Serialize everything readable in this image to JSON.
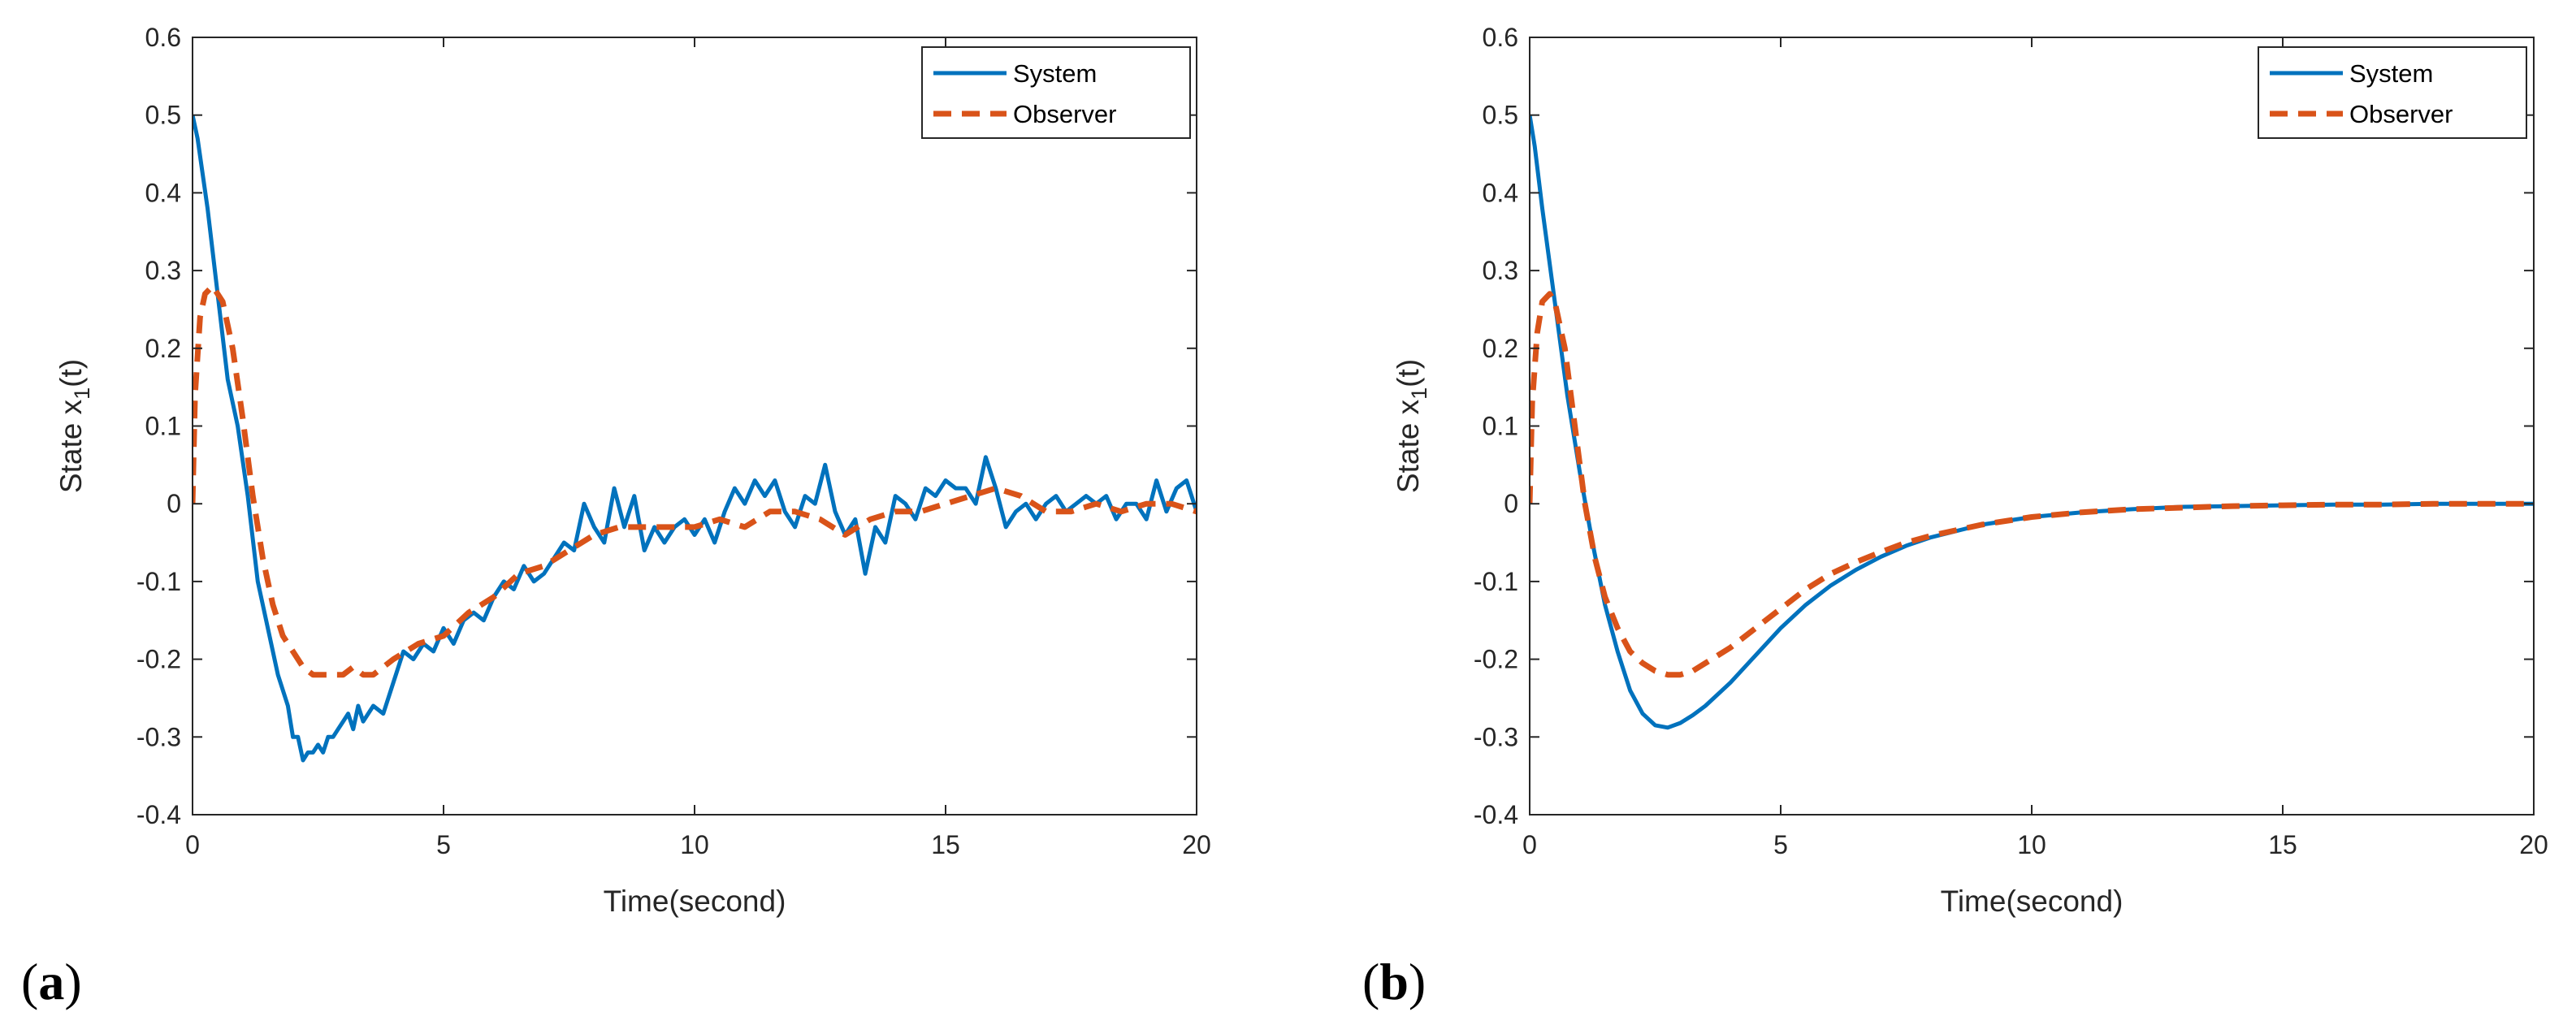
{
  "figure": {
    "panels": [
      {
        "label_open": "(",
        "label_letter": "a",
        "label_close": ")"
      },
      {
        "label_open": "(",
        "label_letter": "b",
        "label_close": ")"
      }
    ]
  },
  "colors": {
    "system": "#0072bd",
    "observer": "#d95319",
    "axis": "#262626"
  },
  "chart_data": [
    {
      "type": "line",
      "panel": "a",
      "xlabel": "Time(second)",
      "ylabel_prefix": "State x",
      "ylabel_sub": "1",
      "ylabel_suffix": "(t)",
      "xlim": [
        0,
        20
      ],
      "ylim": [
        -0.4,
        0.6
      ],
      "xticks": [
        0,
        5,
        10,
        15,
        20
      ],
      "yticks": [
        -0.4,
        -0.3,
        -0.2,
        -0.1,
        0,
        0.1,
        0.2,
        0.3,
        0.4,
        0.5,
        0.6
      ],
      "xtick_labels": [
        "0",
        "5",
        "10",
        "15",
        "20"
      ],
      "ytick_labels": [
        "-0.4",
        "-0.3",
        "-0.2",
        "-0.1",
        "0",
        "0.1",
        "0.2",
        "0.3",
        "0.4",
        "0.5",
        "0.6"
      ],
      "legend": {
        "position": "top-right",
        "entries": [
          "System",
          "Observer"
        ]
      },
      "grid": false,
      "series": [
        {
          "name": "System",
          "style": "solid",
          "x": [
            0,
            0.1,
            0.3,
            0.5,
            0.7,
            0.9,
            1.1,
            1.3,
            1.5,
            1.7,
            1.9,
            2.0,
            2.1,
            2.2,
            2.3,
            2.4,
            2.5,
            2.6,
            2.7,
            2.8,
            2.9,
            3.0,
            3.1,
            3.2,
            3.3,
            3.4,
            3.6,
            3.8,
            4.0,
            4.2,
            4.4,
            4.6,
            4.8,
            5.0,
            5.2,
            5.4,
            5.6,
            5.8,
            6.0,
            6.2,
            6.4,
            6.6,
            6.8,
            7.0,
            7.2,
            7.4,
            7.6,
            7.8,
            8.0,
            8.2,
            8.4,
            8.6,
            8.8,
            9.0,
            9.2,
            9.4,
            9.6,
            9.8,
            10.0,
            10.2,
            10.4,
            10.6,
            10.8,
            11.0,
            11.2,
            11.4,
            11.6,
            11.8,
            12.0,
            12.2,
            12.4,
            12.6,
            12.8,
            13.0,
            13.2,
            13.4,
            13.6,
            13.8,
            14.0,
            14.2,
            14.4,
            14.6,
            14.8,
            15.0,
            15.2,
            15.4,
            15.6,
            15.8,
            16.0,
            16.2,
            16.4,
            16.6,
            16.8,
            17.0,
            17.2,
            17.4,
            17.6,
            17.8,
            18.0,
            18.2,
            18.4,
            18.6,
            18.8,
            19.0,
            19.2,
            19.4,
            19.6,
            19.8,
            20.0
          ],
          "y": [
            0.5,
            0.47,
            0.38,
            0.27,
            0.16,
            0.1,
            0.01,
            -0.1,
            -0.16,
            -0.22,
            -0.26,
            -0.3,
            -0.3,
            -0.33,
            -0.32,
            -0.32,
            -0.31,
            -0.32,
            -0.3,
            -0.3,
            -0.29,
            -0.28,
            -0.27,
            -0.29,
            -0.26,
            -0.28,
            -0.26,
            -0.27,
            -0.23,
            -0.19,
            -0.2,
            -0.18,
            -0.19,
            -0.16,
            -0.18,
            -0.15,
            -0.14,
            -0.15,
            -0.12,
            -0.1,
            -0.11,
            -0.08,
            -0.1,
            -0.09,
            -0.07,
            -0.05,
            -0.06,
            0.0,
            -0.03,
            -0.05,
            0.02,
            -0.03,
            0.01,
            -0.06,
            -0.03,
            -0.05,
            -0.03,
            -0.02,
            -0.04,
            -0.02,
            -0.05,
            -0.01,
            0.02,
            0.0,
            0.03,
            0.01,
            0.03,
            -0.01,
            -0.03,
            0.01,
            0.0,
            0.05,
            -0.01,
            -0.04,
            -0.02,
            -0.09,
            -0.03,
            -0.05,
            0.01,
            0.0,
            -0.02,
            0.02,
            0.01,
            0.03,
            0.02,
            0.02,
            0.0,
            0.06,
            0.02,
            -0.03,
            -0.01,
            0.0,
            -0.02,
            0.0,
            0.01,
            -0.01,
            0.0,
            0.01,
            0.0,
            0.01,
            -0.02,
            0.0,
            0.0,
            -0.02,
            0.03,
            -0.01,
            0.02,
            0.03,
            -0.01
          ]
        },
        {
          "name": "Observer",
          "style": "dashed",
          "x": [
            0,
            0.05,
            0.15,
            0.25,
            0.4,
            0.6,
            0.8,
            1.0,
            1.2,
            1.4,
            1.6,
            1.8,
            2.0,
            2.2,
            2.4,
            2.6,
            2.8,
            3.0,
            3.2,
            3.4,
            3.6,
            3.8,
            4.0,
            4.5,
            5.0,
            5.5,
            6.0,
            6.5,
            7.0,
            7.5,
            8.0,
            8.5,
            9.0,
            9.5,
            10.0,
            10.5,
            11.0,
            11.5,
            12.0,
            12.5,
            13.0,
            13.5,
            14.0,
            14.5,
            15.0,
            15.5,
            16.0,
            16.5,
            17.0,
            17.5,
            18.0,
            18.5,
            19.0,
            19.5,
            20.0
          ],
          "y": [
            0.0,
            0.14,
            0.24,
            0.27,
            0.28,
            0.26,
            0.2,
            0.11,
            0.01,
            -0.07,
            -0.13,
            -0.17,
            -0.19,
            -0.21,
            -0.22,
            -0.22,
            -0.22,
            -0.22,
            -0.21,
            -0.22,
            -0.22,
            -0.21,
            -0.2,
            -0.18,
            -0.17,
            -0.14,
            -0.12,
            -0.09,
            -0.08,
            -0.06,
            -0.04,
            -0.03,
            -0.03,
            -0.03,
            -0.03,
            -0.02,
            -0.03,
            -0.01,
            -0.01,
            -0.02,
            -0.04,
            -0.02,
            -0.01,
            -0.01,
            0.0,
            0.01,
            0.02,
            0.01,
            -0.01,
            -0.01,
            0.0,
            -0.01,
            0.0,
            0.0,
            -0.01
          ]
        }
      ]
    },
    {
      "type": "line",
      "panel": "b",
      "xlabel": "Time(second)",
      "ylabel_prefix": "State x",
      "ylabel_sub": "1",
      "ylabel_suffix": "(t)",
      "xlim": [
        0,
        20
      ],
      "ylim": [
        -0.4,
        0.6
      ],
      "xticks": [
        0,
        5,
        10,
        15,
        20
      ],
      "yticks": [
        -0.4,
        -0.3,
        -0.2,
        -0.1,
        0,
        0.1,
        0.2,
        0.3,
        0.4,
        0.5,
        0.6
      ],
      "xtick_labels": [
        "0",
        "5",
        "10",
        "15",
        "20"
      ],
      "ytick_labels": [
        "-0.4",
        "-0.3",
        "-0.2",
        "-0.1",
        "0",
        "0.1",
        "0.2",
        "0.3",
        "0.4",
        "0.5",
        "0.6"
      ],
      "legend": {
        "position": "top-right",
        "entries": [
          "System",
          "Observer"
        ]
      },
      "grid": false,
      "series": [
        {
          "name": "System",
          "style": "solid",
          "x": [
            0,
            0.1,
            0.25,
            0.5,
            0.75,
            1.0,
            1.25,
            1.5,
            1.75,
            2.0,
            2.25,
            2.5,
            2.75,
            3.0,
            3.25,
            3.5,
            4.0,
            4.5,
            5.0,
            5.5,
            6.0,
            6.5,
            7.0,
            7.5,
            8.0,
            9.0,
            10.0,
            11.0,
            12.0,
            13.0,
            14.0,
            15.0,
            16.0,
            17.0,
            18.0,
            19.0,
            20.0
          ],
          "y": [
            0.5,
            0.46,
            0.38,
            0.26,
            0.14,
            0.04,
            -0.05,
            -0.13,
            -0.19,
            -0.24,
            -0.27,
            -0.285,
            -0.288,
            -0.282,
            -0.272,
            -0.26,
            -0.23,
            -0.195,
            -0.16,
            -0.13,
            -0.105,
            -0.085,
            -0.068,
            -0.054,
            -0.043,
            -0.027,
            -0.017,
            -0.011,
            -0.007,
            -0.004,
            -0.003,
            -0.002,
            -0.001,
            -0.001,
            0.0,
            0.0,
            0.0
          ]
        },
        {
          "name": "Observer",
          "style": "dashed",
          "x": [
            0,
            0.05,
            0.15,
            0.25,
            0.4,
            0.5,
            0.7,
            0.9,
            1.1,
            1.3,
            1.5,
            1.75,
            2.0,
            2.25,
            2.5,
            2.75,
            3.0,
            3.25,
            3.5,
            4.0,
            4.5,
            5.0,
            5.5,
            6.0,
            6.5,
            7.0,
            7.5,
            8.0,
            9.0,
            10.0,
            11.0,
            12.0,
            13.0,
            14.0,
            15.0,
            16.0,
            17.0,
            18.0,
            19.0,
            20.0
          ],
          "y": [
            0.0,
            0.13,
            0.22,
            0.26,
            0.27,
            0.26,
            0.2,
            0.1,
            0.0,
            -0.07,
            -0.12,
            -0.16,
            -0.19,
            -0.205,
            -0.215,
            -0.22,
            -0.22,
            -0.215,
            -0.205,
            -0.185,
            -0.16,
            -0.135,
            -0.11,
            -0.09,
            -0.075,
            -0.062,
            -0.05,
            -0.041,
            -0.027,
            -0.017,
            -0.011,
            -0.007,
            -0.005,
            -0.003,
            -0.002,
            -0.001,
            -0.001,
            0.0,
            0.0,
            0.0
          ]
        }
      ]
    }
  ]
}
